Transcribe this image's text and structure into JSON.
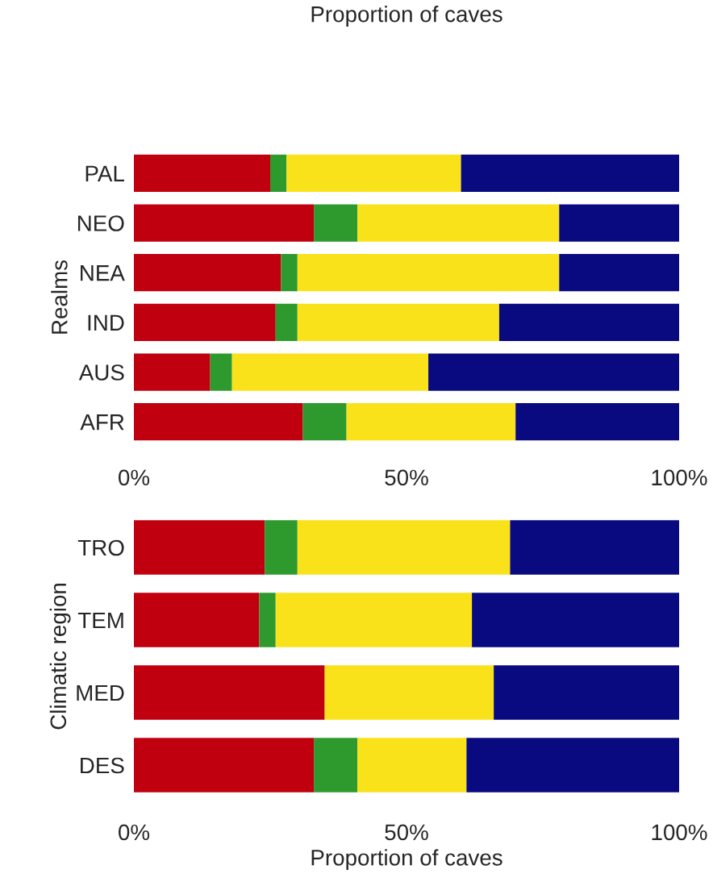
{
  "chart_data": [
    {
      "type": "bar",
      "orientation": "horizontal",
      "stacked": true,
      "ylabel": "Realms",
      "annotations": [
        "Proportion of caves"
      ],
      "categories": [
        "PAL",
        "NEO",
        "NEA",
        "IND",
        "AUS",
        "AFR"
      ],
      "series": [
        {
          "color": "#c0000f",
          "values": [
            25,
            33,
            27,
            26,
            14,
            31
          ]
        },
        {
          "color": "#2e9a2e",
          "values": [
            3,
            8,
            3,
            4,
            4,
            8
          ]
        },
        {
          "color": "#f9e21a",
          "values": [
            32,
            37,
            48,
            37,
            36,
            31
          ]
        },
        {
          "color": "#0a0a80",
          "values": [
            40,
            22,
            22,
            33,
            46,
            30
          ]
        }
      ],
      "xlim": [
        0,
        100
      ],
      "xticks": [
        {
          "value": 0,
          "label": "0%"
        },
        {
          "value": 50,
          "label": "50%"
        },
        {
          "value": 100,
          "label": "100%"
        }
      ],
      "grid": false
    },
    {
      "type": "bar",
      "orientation": "horizontal",
      "stacked": true,
      "ylabel": "Climatic region",
      "xlabel": "Proportion of caves",
      "categories": [
        "TRO",
        "TEM",
        "MED",
        "DES"
      ],
      "series": [
        {
          "color": "#c0000f",
          "values": [
            24,
            23,
            35,
            33
          ]
        },
        {
          "color": "#2e9a2e",
          "values": [
            6,
            3,
            0,
            8
          ]
        },
        {
          "color": "#f9e21a",
          "values": [
            39,
            36,
            31,
            20
          ]
        },
        {
          "color": "#0a0a80",
          "values": [
            31,
            38,
            34,
            39
          ]
        }
      ],
      "xlim": [
        0,
        100
      ],
      "xticks": [
        {
          "value": 0,
          "label": "0%"
        },
        {
          "value": 50,
          "label": "50%"
        },
        {
          "value": 100,
          "label": "100%"
        }
      ],
      "grid": false
    }
  ]
}
